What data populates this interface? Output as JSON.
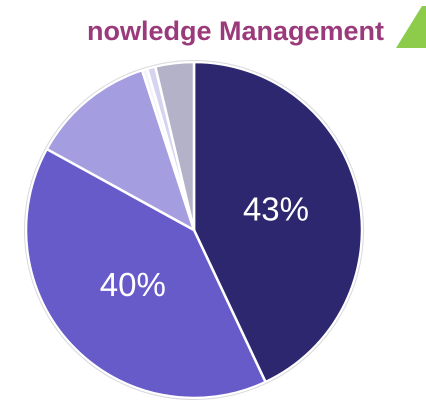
{
  "chart_data": {
    "type": "pie",
    "title": "nowledge Management",
    "values": [
      43,
      40,
      12,
      0.5,
      0.8,
      3.7
    ],
    "value_labels": [
      "43%",
      "40%",
      null,
      null,
      null,
      null
    ],
    "colors": [
      "#2d2770",
      "#665bc9",
      "#a49de0",
      "#f4f3fb",
      "#d6d3f0",
      "#b4b2c9"
    ]
  }
}
